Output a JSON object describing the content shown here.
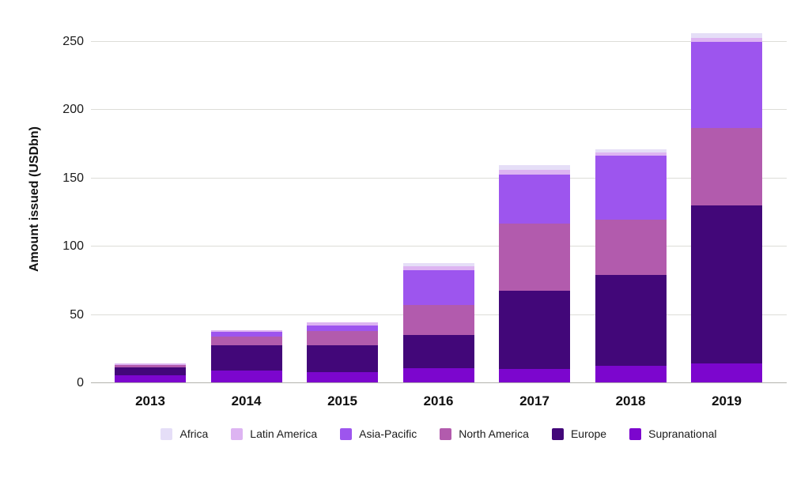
{
  "chart_data": {
    "type": "bar",
    "stacked": true,
    "ylabel": "Amount issued (USDbn)",
    "xlabel": "",
    "categories": [
      "2013",
      "2014",
      "2015",
      "2016",
      "2017",
      "2018",
      "2019"
    ],
    "series": [
      {
        "name": "Supranational",
        "color": "#7C06CE",
        "values": [
          5.5,
          8.5,
          7.5,
          10.5,
          10,
          12,
          14
        ]
      },
      {
        "name": "Europe",
        "color": "#420779",
        "values": [
          5.5,
          18.5,
          20,
          24,
          57,
          67,
          115.5
        ]
      },
      {
        "name": "North America",
        "color": "#B25BAD",
        "values": [
          2,
          6.5,
          10,
          22,
          49.5,
          40.5,
          57
        ]
      },
      {
        "name": "Asia-Pacific",
        "color": "#9D55EE",
        "values": [
          0,
          3.5,
          4,
          25.5,
          35.5,
          46.5,
          63
        ]
      },
      {
        "name": "Latin America",
        "color": "#DDB4F2",
        "values": [
          1,
          1,
          2.5,
          3,
          3.5,
          2.5,
          3
        ]
      },
      {
        "name": "Africa",
        "color": "#E5DEF7",
        "values": [
          0,
          0,
          0,
          2.5,
          3.5,
          2.5,
          3.5
        ]
      }
    ],
    "totals": [
      14,
      38,
      44,
      87.5,
      159,
      171,
      256
    ],
    "legend": [
      "Africa",
      "Latin America",
      "Asia-Pacific",
      "North America",
      "Europe",
      "Supranational"
    ],
    "legend_position": "bottom",
    "y_ticks": [
      0,
      50,
      100,
      150,
      200,
      250
    ],
    "ylim": [
      0,
      260
    ],
    "grid": true,
    "colors": {
      "grid_line": "#dddDd8",
      "axis_line": "#b3b3ad",
      "text": "#1b1b1b"
    }
  }
}
